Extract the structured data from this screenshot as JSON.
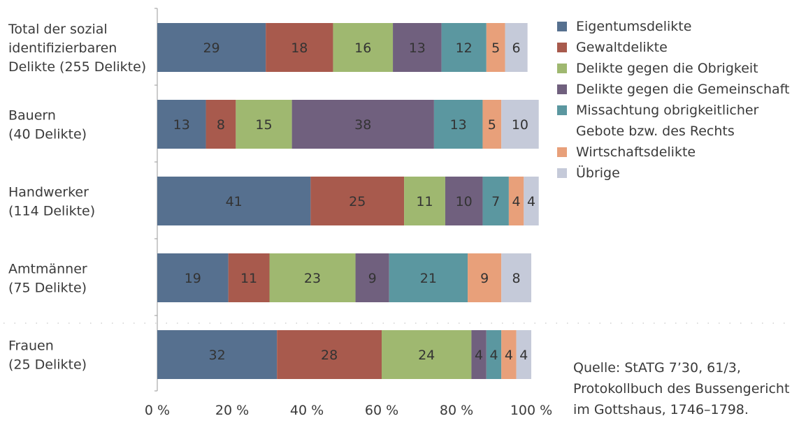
{
  "chart_data": {
    "type": "bar",
    "orientation": "horizontal",
    "stacked": true,
    "percent_scale": true,
    "categories": [
      [
        "Total der sozial",
        "identifizierbaren",
        "Delikte (255 Delikte)"
      ],
      [
        "Bauern",
        "(40 Delikte)"
      ],
      [
        "Handwerker",
        "(114 Delikte)"
      ],
      [
        "Amtmänner",
        "(75 Delikte)"
      ],
      [
        "Frauen",
        "(25 Delikte)"
      ]
    ],
    "series": [
      {
        "name": "Eigentumsdelikte",
        "color": "#56708f",
        "values": [
          29,
          13,
          41,
          19,
          32
        ]
      },
      {
        "name": "Gewaltdelikte",
        "color": "#a85a4d",
        "values": [
          18,
          8,
          25,
          11,
          28
        ]
      },
      {
        "name": "Delikte gegen die Obrigkeit",
        "color": "#9fb870",
        "values": [
          16,
          15,
          11,
          23,
          24
        ]
      },
      {
        "name": "Delikte gegen die Gemeinschaft",
        "color": "#70607e",
        "values": [
          13,
          38,
          10,
          9,
          4
        ]
      },
      {
        "name": [
          "Missachtung obrigkeitlicher",
          "Gebote bzw. des Rechts"
        ],
        "color": "#5b97a0",
        "values": [
          12,
          13,
          7,
          21,
          4
        ]
      },
      {
        "name": "Wirtschaftsdelikte",
        "color": "#e8a07a",
        "values": [
          5,
          5,
          4,
          9,
          4
        ]
      },
      {
        "name": "Übrige",
        "color": "#c5cad9",
        "values": [
          6,
          10,
          4,
          8,
          4
        ]
      }
    ],
    "xticks": [
      "0 %",
      "20 %",
      "40 %",
      "60 %",
      "80 %",
      "100 %"
    ],
    "xlim": [
      0,
      100
    ],
    "legend_position": "right",
    "source_note": [
      "Quelle: StATG 7’30, 61/3,",
      "Protokollbuch des Bussengericht",
      "im Gottshaus, 1746–1798."
    ]
  }
}
